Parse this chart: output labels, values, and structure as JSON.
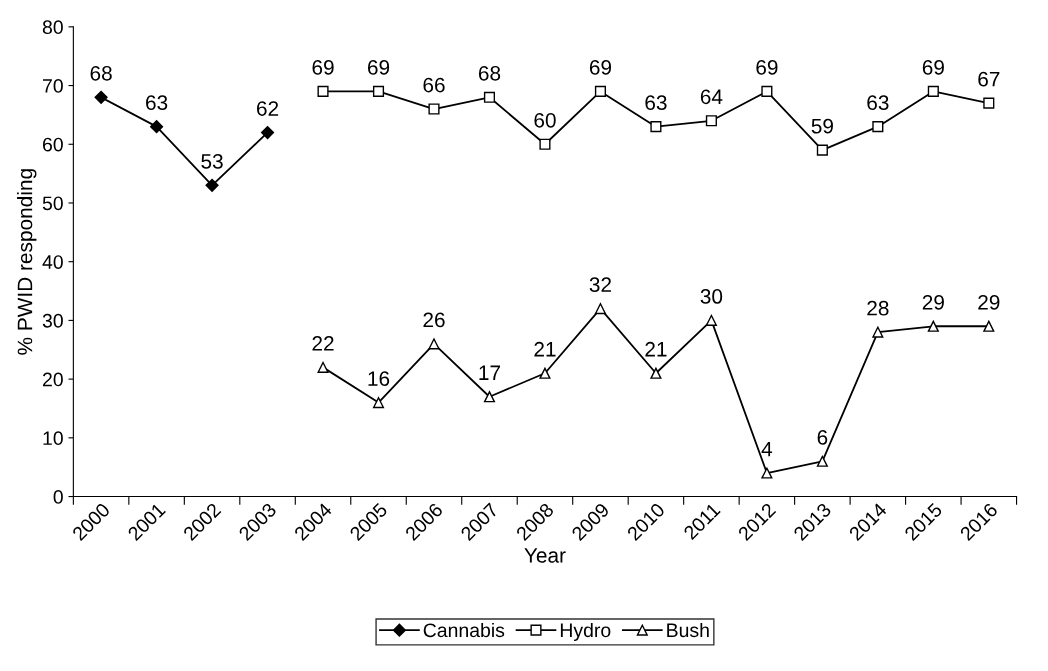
{
  "chart_data": {
    "type": "line",
    "xlabel": "Year",
    "ylabel": "% PWID responding",
    "categories": [
      "2000",
      "2001",
      "2002",
      "2003",
      "2004",
      "2005",
      "2006",
      "2007",
      "2008",
      "2009",
      "2010",
      "2011",
      "2012",
      "2013",
      "2014",
      "2015",
      "2016"
    ],
    "series": [
      {
        "name": "Cannabis",
        "color": "#000000",
        "marker": "diamond",
        "values": [
          68,
          63,
          53,
          62,
          null,
          null,
          null,
          null,
          null,
          null,
          null,
          null,
          null,
          null,
          null,
          null,
          null
        ]
      },
      {
        "name": "Hydro",
        "color": "#000000",
        "marker": "square",
        "values": [
          null,
          null,
          null,
          null,
          69,
          69,
          66,
          68,
          60,
          69,
          63,
          64,
          69,
          59,
          63,
          69,
          67
        ]
      },
      {
        "name": "Bush",
        "color": "#000000",
        "marker": "triangle",
        "values": [
          null,
          null,
          null,
          null,
          22,
          16,
          26,
          17,
          21,
          32,
          21,
          30,
          4,
          6,
          28,
          29,
          29
        ]
      }
    ],
    "ylim": [
      0,
      80
    ],
    "yticks": [
      0,
      10,
      20,
      30,
      40,
      50,
      60,
      70,
      80
    ],
    "data_labels": true,
    "grid": false,
    "legend": "bottom",
    "line_style": "solid"
  }
}
